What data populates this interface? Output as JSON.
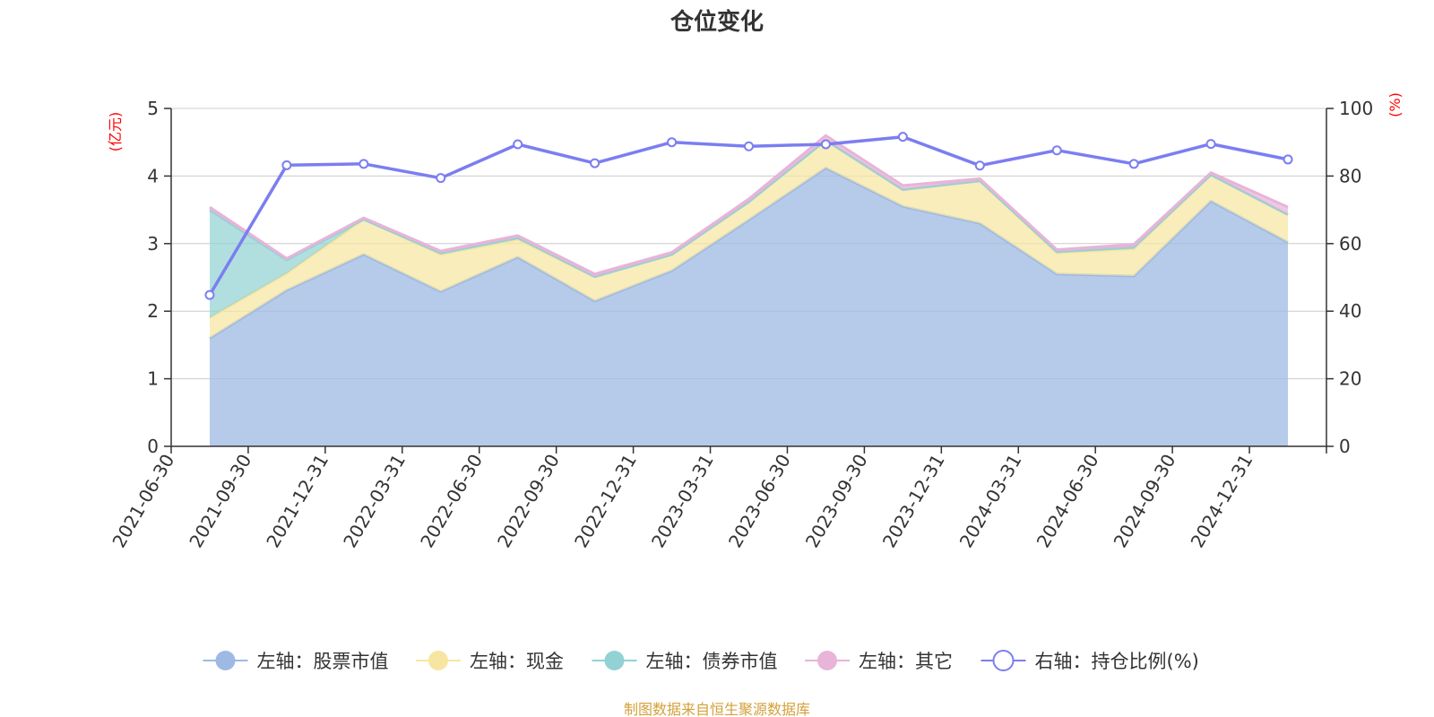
{
  "chart_data": {
    "type": "area",
    "title": "仓位变化",
    "y_left_unit": "(亿元)",
    "y_right_unit": "(%)",
    "y_left_lim": [
      0,
      5
    ],
    "y_left_ticks": [
      "0",
      "1",
      "2",
      "3",
      "4",
      "5"
    ],
    "y_right_lim": [
      0,
      100
    ],
    "y_right_ticks": [
      "0",
      "20",
      "40",
      "60",
      "80",
      "100"
    ],
    "grid": true,
    "legend_position": "bottom",
    "categories": [
      "2021-06-30",
      "2021-09-30",
      "2021-12-31",
      "2022-03-31",
      "2022-06-30",
      "2022-09-30",
      "2022-12-31",
      "2023-03-31",
      "2023-06-30",
      "2023-09-30",
      "2023-12-31",
      "2024-03-31",
      "2024-06-30",
      "2024-09-30",
      "2024-12-31"
    ],
    "stacked_series": [
      {
        "name": "左轴：股票市值",
        "color": "#9eb9e3",
        "values": [
          1.6,
          2.31,
          2.84,
          2.29,
          2.8,
          2.15,
          2.6,
          3.35,
          4.12,
          3.55,
          3.3,
          2.55,
          2.52,
          3.63,
          3.02
        ]
      },
      {
        "name": "左轴：现金",
        "color": "#f7e6a1",
        "values": [
          0.3,
          0.25,
          0.52,
          0.55,
          0.26,
          0.36,
          0.24,
          0.27,
          0.41,
          0.25,
          0.63,
          0.31,
          0.4,
          0.39,
          0.41
        ]
      },
      {
        "name": "左轴：债券市值",
        "color": "#93d2d4",
        "values": [
          1.6,
          0.2,
          0,
          0.02,
          0.03,
          0,
          0,
          0,
          0,
          0,
          0,
          0.02,
          0.03,
          0,
          0
        ]
      },
      {
        "name": "左轴：其它",
        "color": "#e8b4d8",
        "values": [
          0.04,
          0.02,
          0.02,
          0.03,
          0.03,
          0.04,
          0.03,
          0.04,
          0.07,
          0.06,
          0.03,
          0.03,
          0.04,
          0.03,
          0.11
        ]
      }
    ],
    "line_series": {
      "name": "右轴：持仓比例(%)",
      "color": "#7b7ef0",
      "axis": "right",
      "values": [
        44.8,
        83.2,
        83.6,
        79.4,
        89.4,
        83.8,
        90.0,
        88.8,
        89.4,
        91.6,
        83.1,
        87.6,
        83.6,
        89.5,
        84.9
      ]
    }
  },
  "footer": {
    "source": "制图数据来自恒生聚源数据库"
  },
  "colors": {
    "axis": "#333333",
    "grid": "#cccccc",
    "unit": "#ff0000",
    "source": "#d4a03a"
  }
}
